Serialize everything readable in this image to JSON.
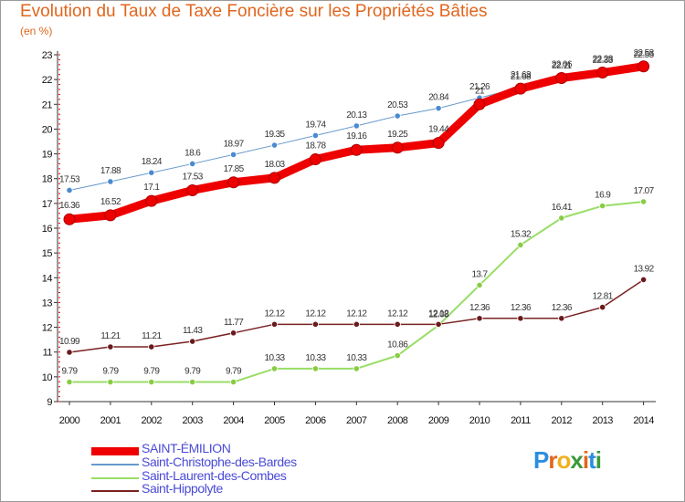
{
  "title": "Evolution du Taux de Taxe Foncière sur les Propriétés Bâties",
  "unit": "(en %)",
  "logo": {
    "text": "Proxiti",
    "colors": [
      "#2a8de0",
      "#e0661e",
      "#f0b020",
      "#3a9a3a",
      "#e0661e",
      "#2a8de0",
      "#3a9a3a"
    ]
  },
  "chart_data": {
    "type": "line",
    "title": "Evolution du Taux de Taxe Foncière sur les Propriétés Bâties",
    "ylabel": "(en %)",
    "ylim": [
      9,
      23
    ],
    "yticks": [
      9,
      10,
      11,
      12,
      13,
      14,
      15,
      16,
      17,
      18,
      19,
      20,
      21,
      22,
      23
    ],
    "x": [
      "2000",
      "2001",
      "2002",
      "2003",
      "2004",
      "2005",
      "2006",
      "2007",
      "2008",
      "2009",
      "2010",
      "2011",
      "2012",
      "2013",
      "2014"
    ],
    "grid": false,
    "legend_placement": "bottom-left",
    "series": [
      {
        "name": "SAINT-ÉMILION",
        "color": "#ee0000",
        "width": 9,
        "values": [
          16.36,
          16.52,
          17.1,
          17.53,
          17.85,
          18.03,
          18.78,
          19.16,
          19.25,
          19.44,
          21,
          21.63,
          22.06,
          22.28,
          22.53
        ],
        "labels": [
          "16.36",
          "16.52",
          "17.1",
          "17.53",
          "17.85",
          "18.03",
          "18.78",
          "19.16",
          "19.25",
          "19.44",
          "21",
          "21.63",
          "22.06",
          "22.28",
          "22.53"
        ]
      },
      {
        "name": "Saint-Christophe-des-Bardes",
        "color": "#6699cc",
        "width": 1,
        "values": [
          17.53,
          17.88,
          18.24,
          18.6,
          18.97,
          19.35,
          19.74,
          20.13,
          20.53,
          20.84,
          21.26,
          21.68,
          22.11,
          22.33,
          22.55
        ],
        "labels": [
          "17.53",
          "17.88",
          "18.24",
          "18.6",
          "18.97",
          "19.35",
          "19.74",
          "20.13",
          "20.53",
          "20.84",
          "21.26",
          "21.68",
          "22.11",
          "22.33",
          "22.55"
        ]
      },
      {
        "name": "Saint-Laurent-des-Combes",
        "color": "#99dd66",
        "width": 2,
        "values": [
          9.79,
          9.79,
          9.79,
          9.79,
          9.79,
          10.33,
          10.33,
          10.33,
          10.86,
          12.08,
          13.7,
          15.32,
          16.41,
          16.9,
          17.07
        ],
        "labels": [
          "9.79",
          "9.79",
          "9.79",
          "9.79",
          "9.79",
          "10.33",
          "10.33",
          "10.33",
          "10.86",
          "12.08",
          "13.7",
          "15.32",
          "16.41",
          "16.9",
          "17.07"
        ]
      },
      {
        "name": "Saint-Hippolyte",
        "color": "#7a2222",
        "width": 1.5,
        "values": [
          10.99,
          11.21,
          11.21,
          11.43,
          11.77,
          12.12,
          12.12,
          12.12,
          12.12,
          12.12,
          12.36,
          12.36,
          12.36,
          12.81,
          13.92
        ],
        "labels": [
          "10.99",
          "11.21",
          "11.21",
          "11.43",
          "11.77",
          "12.12",
          "12.12",
          "12.12",
          "12.12",
          "12.12",
          "12.36",
          "12.36",
          "12.36",
          "12.81",
          "13.92"
        ]
      }
    ]
  }
}
